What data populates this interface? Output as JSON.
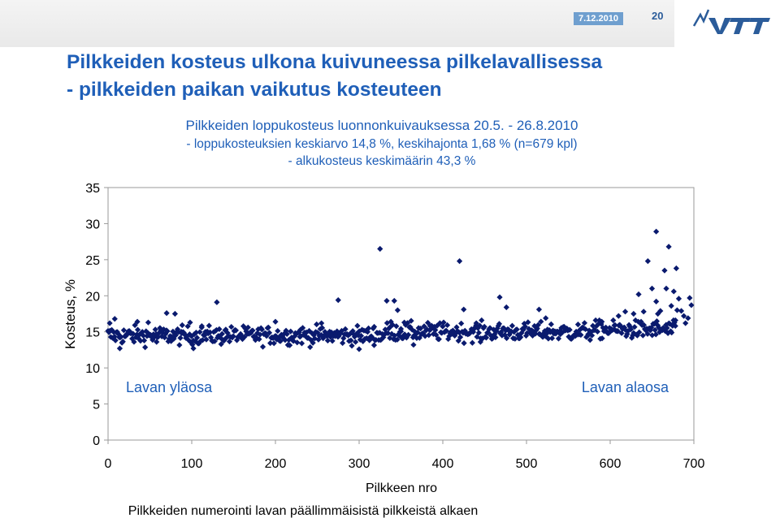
{
  "header": {
    "date": "7.12.2010",
    "page_number": "20",
    "logo": "VTT",
    "logo_icon": "vtt-logo-icon",
    "accent": "#2b5c9a"
  },
  "title": {
    "line1": "Pilkkeiden kosteus ulkona kuivuneessa pilkelavallisessa",
    "line2": "- pilkkeiden paikan vaikutus kosteuteen"
  },
  "chart_data": {
    "type": "scatter",
    "title": "Pilkkeiden loppukosteus luonnonkuivauksessa 20.5. - 26.8.2010",
    "subtitle": [
      "- loppukosteuksien keskiarvo 14,8 %, keskihajonta 1,68 % (n=679 kpl)",
      "- alkukosteus keskimäärin 43,3 %"
    ],
    "xlabel": "Pilkkeen nro",
    "ylabel": "Kosteus, %",
    "footnote": "Pilkkeiden numerointi lavan päällimmäisistä pilkkeistä alkaen",
    "xlim": [
      0,
      700
    ],
    "ylim": [
      0,
      35
    ],
    "xticks": [
      0,
      100,
      200,
      300,
      400,
      500,
      600,
      700
    ],
    "yticks": [
      0,
      5,
      10,
      15,
      20,
      25,
      30,
      35
    ],
    "grid": false,
    "annotations": {
      "left": "Lavan yläosa",
      "right": "Lavan alaosa"
    },
    "marker_color": "#0a1a6e",
    "n": 679,
    "mean": 14.8,
    "std": 1.68,
    "outliers": [
      {
        "x": 2,
        "y": 16.2
      },
      {
        "x": 8,
        "y": 16.8
      },
      {
        "x": 14,
        "y": 12.7
      },
      {
        "x": 35,
        "y": 16.4
      },
      {
        "x": 48,
        "y": 16.3
      },
      {
        "x": 58,
        "y": 13.6
      },
      {
        "x": 70,
        "y": 17.6
      },
      {
        "x": 80,
        "y": 17.5
      },
      {
        "x": 88,
        "y": 14.8
      },
      {
        "x": 98,
        "y": 16.3
      },
      {
        "x": 102,
        "y": 12.7
      },
      {
        "x": 112,
        "y": 15.8
      },
      {
        "x": 130,
        "y": 19.1
      },
      {
        "x": 140,
        "y": 15.2
      },
      {
        "x": 200,
        "y": 16.4
      },
      {
        "x": 230,
        "y": 15.3
      },
      {
        "x": 255,
        "y": 16.2
      },
      {
        "x": 275,
        "y": 19.4
      },
      {
        "x": 300,
        "y": 12.6
      },
      {
        "x": 318,
        "y": 15.7
      },
      {
        "x": 325,
        "y": 26.5
      },
      {
        "x": 333,
        "y": 19.3
      },
      {
        "x": 338,
        "y": 16.4
      },
      {
        "x": 342,
        "y": 19.3
      },
      {
        "x": 346,
        "y": 18.0
      },
      {
        "x": 350,
        "y": 15.4
      },
      {
        "x": 354,
        "y": 16.3
      },
      {
        "x": 365,
        "y": 13.2
      },
      {
        "x": 385,
        "y": 15.8
      },
      {
        "x": 420,
        "y": 24.8
      },
      {
        "x": 425,
        "y": 18.1
      },
      {
        "x": 440,
        "y": 16.2
      },
      {
        "x": 445,
        "y": 13.6
      },
      {
        "x": 468,
        "y": 19.8
      },
      {
        "x": 476,
        "y": 18.4
      },
      {
        "x": 515,
        "y": 18.1
      },
      {
        "x": 523,
        "y": 16.9
      },
      {
        "x": 590,
        "y": 16.4
      },
      {
        "x": 605,
        "y": 15.9
      },
      {
        "x": 610,
        "y": 17.2
      },
      {
        "x": 618,
        "y": 17.8
      },
      {
        "x": 628,
        "y": 17.5
      },
      {
        "x": 634,
        "y": 20.2
      },
      {
        "x": 640,
        "y": 17.8
      },
      {
        "x": 645,
        "y": 24.8
      },
      {
        "x": 650,
        "y": 21.0
      },
      {
        "x": 655,
        "y": 19.2
      },
      {
        "x": 657,
        "y": 17.5
      },
      {
        "x": 660,
        "y": 17.9
      },
      {
        "x": 663,
        "y": 15.5
      },
      {
        "x": 655,
        "y": 28.9
      },
      {
        "x": 665,
        "y": 23.5
      },
      {
        "x": 667,
        "y": 21.0
      },
      {
        "x": 670,
        "y": 26.8
      },
      {
        "x": 673,
        "y": 18.6
      },
      {
        "x": 676,
        "y": 20.6
      },
      {
        "x": 678,
        "y": 16.6
      },
      {
        "x": 680,
        "y": 18.0
      },
      {
        "x": 682,
        "y": 19.6
      },
      {
        "x": 685,
        "y": 17.9
      },
      {
        "x": 688,
        "y": 17.2
      },
      {
        "x": 690,
        "y": 16.2
      },
      {
        "x": 693,
        "y": 16.9
      },
      {
        "x": 695,
        "y": 19.7
      },
      {
        "x": 697,
        "y": 18.7
      },
      {
        "x": 679,
        "y": 23.8
      }
    ]
  }
}
